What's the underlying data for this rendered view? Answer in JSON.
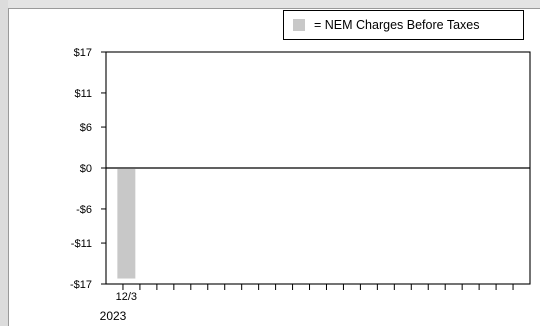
{
  "legend": {
    "label": "= NEM Charges Before Taxes",
    "swatch_color": "#c8c8c8"
  },
  "chart_data": {
    "type": "bar",
    "categories": [
      "12/3"
    ],
    "x_year_label": "2023",
    "values": [
      -16.2
    ],
    "ylim": [
      -17,
      17
    ],
    "yticks": [
      17,
      11,
      6,
      0,
      -6,
      -11,
      -17
    ],
    "ytick_labels": [
      "$17",
      "$11",
      "$6",
      "$0",
      "-$6",
      "-$11",
      "-$17"
    ],
    "bar_color": "#c8c8c8",
    "legend_position": "top-right",
    "grid": false
  }
}
